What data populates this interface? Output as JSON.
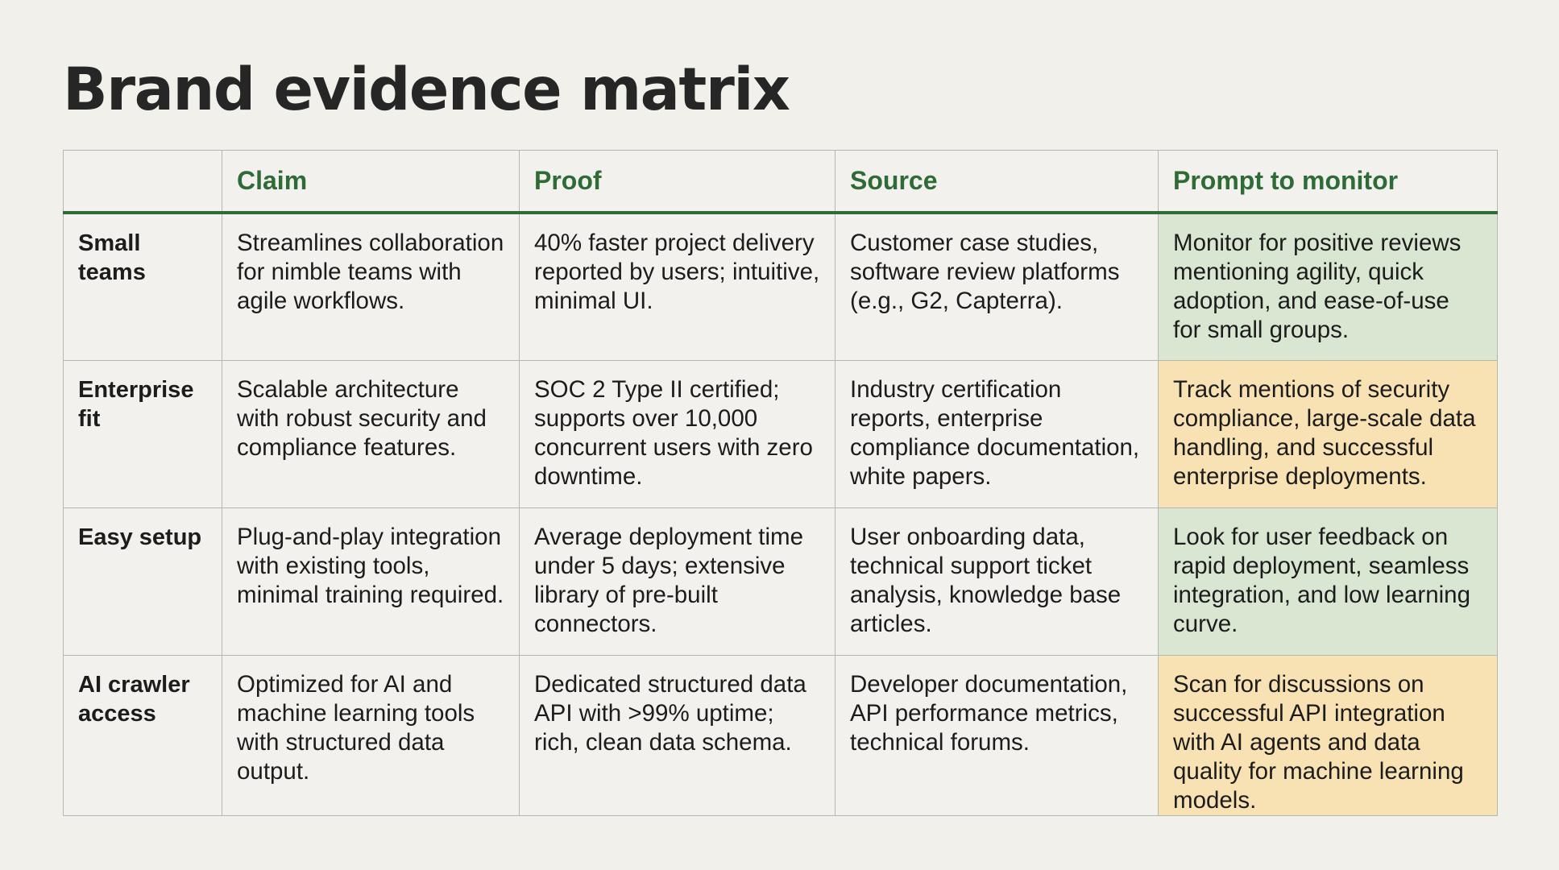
{
  "title": "Brand evidence matrix",
  "columns": [
    "",
    "Claim",
    "Proof",
    "Source",
    "Prompt to monitor"
  ],
  "colors": {
    "header_text": "#2e6b37",
    "prompt_green": "#d8e6d2",
    "prompt_amber": "#f8e2b4",
    "background": "#f1f0eb"
  },
  "rows": [
    {
      "label": "Small teams",
      "claim": "Streamlines collaboration for nimble teams with agile workflows.",
      "proof": "40% faster project delivery reported by users; intuitive, minimal UI.",
      "source": "Customer case studies, software review platforms (e.g., G2, Capterra).",
      "prompt": "Monitor for positive reviews mentioning agility, quick adoption, and ease-of-use for small groups.",
      "prompt_tone": "green"
    },
    {
      "label": "Enterprise fit",
      "claim": "Scalable architecture with robust security and compliance features.",
      "proof": "SOC 2 Type II certified; supports over 10,000 concurrent users with zero downtime.",
      "source": "Industry certification reports, enterprise compliance documentation, white papers.",
      "prompt": "Track mentions of security compliance, large-scale data handling, and successful enterprise deployments.",
      "prompt_tone": "amber"
    },
    {
      "label": "Easy setup",
      "claim": "Plug-and-play integration with existing tools, minimal training required.",
      "proof": "Average deployment time under 5 days; extensive library of pre-built connectors.",
      "source": "User onboarding data, technical support ticket analysis, knowledge base articles.",
      "prompt": "Look for user feedback on rapid deployment, seamless integration, and low learning curve.",
      "prompt_tone": "green"
    },
    {
      "label": "AI crawler access",
      "claim": "Optimized for AI and machine learning tools with structured data output.",
      "proof": "Dedicated structured data API with >99% uptime; rich, clean data schema.",
      "source": "Developer documentation, API performance metrics, technical forums.",
      "prompt": "Scan for discussions on successful API integration with AI agents and data quality for machine learning models.",
      "prompt_tone": "amber"
    }
  ]
}
